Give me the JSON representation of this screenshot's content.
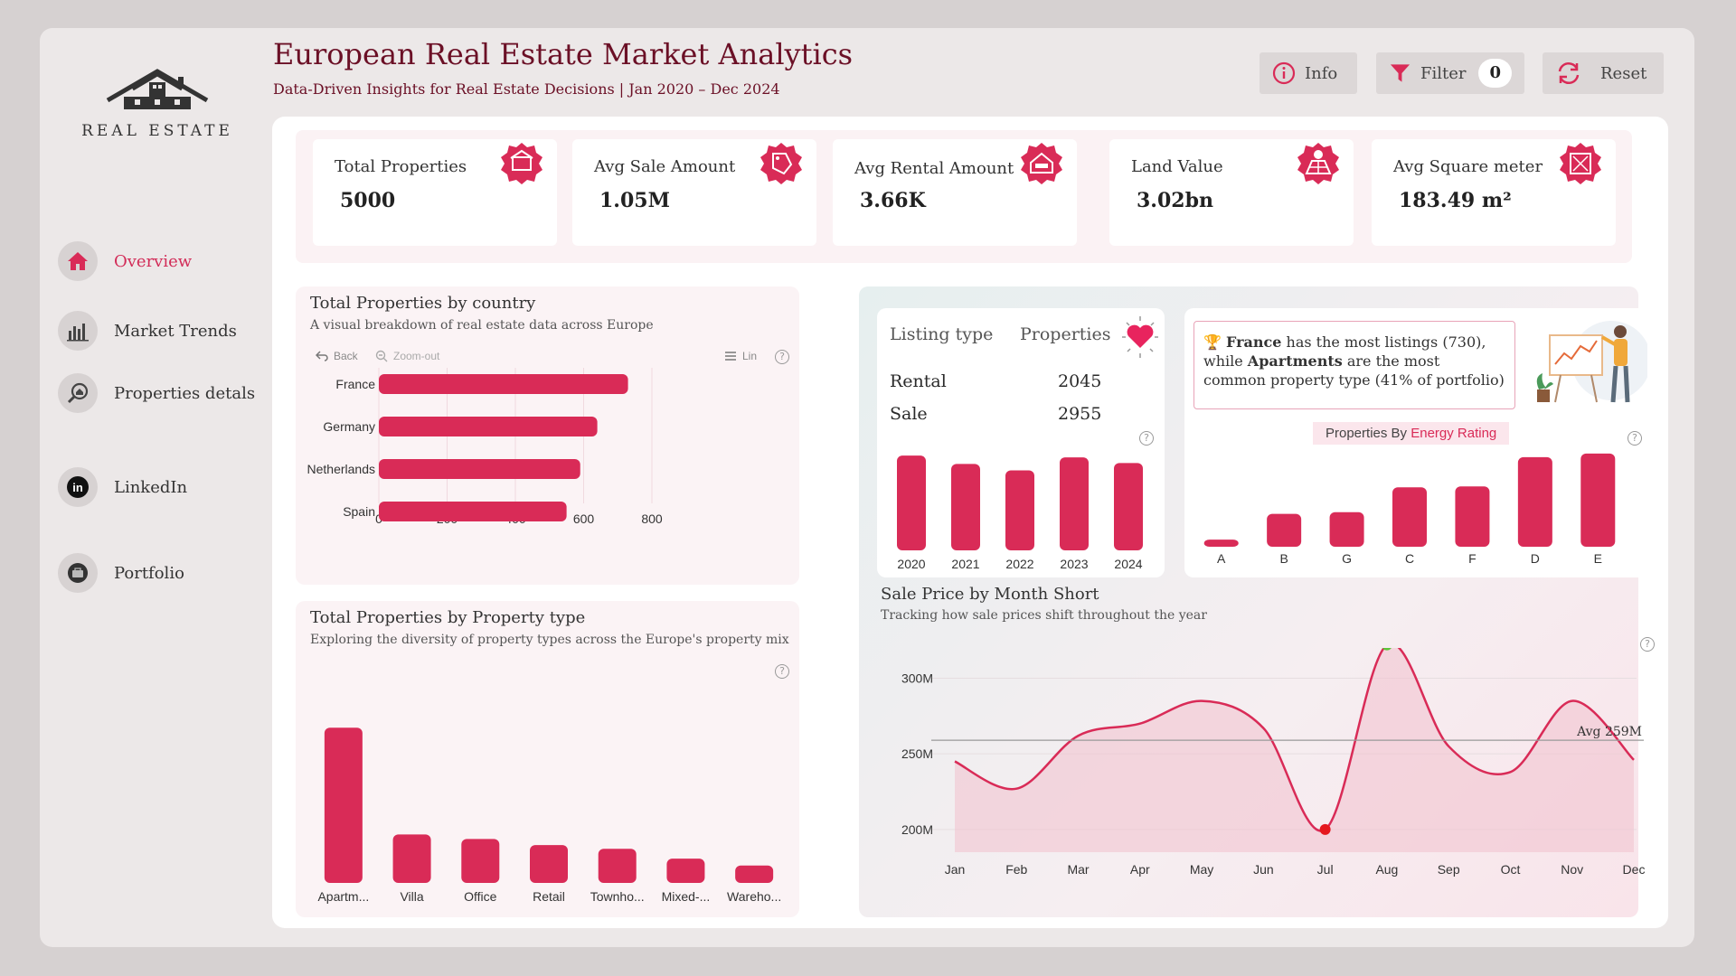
{
  "logo": {
    "text": "REAL ESTATE"
  },
  "header": {
    "title": "European Real Estate Market Analytics",
    "subtitle": "Data-Driven Insights for Real Estate Decisions | Jan 2020 – Dec 2024",
    "info_label": "Info",
    "filter_label": "Filter",
    "filter_count": "0",
    "reset_label": "Reset"
  },
  "nav": [
    {
      "label": "Overview"
    },
    {
      "label": "Market Trends"
    },
    {
      "label": "Properties detals"
    },
    {
      "label": "LinkedIn"
    },
    {
      "label": "Portfolio"
    }
  ],
  "kpis": [
    {
      "label": "Total Properties",
      "value": "5000"
    },
    {
      "label": "Avg Sale Amount",
      "value": "1.05M"
    },
    {
      "label": "Avg Rental Amount",
      "value": "3.66K"
    },
    {
      "label": "Land Value",
      "value": "3.02bn"
    },
    {
      "label": "Avg Square meter",
      "value": "183.49 m²"
    }
  ],
  "country_panel": {
    "title": "Total Properties by country",
    "subtitle": "A visual breakdown of real estate data across Europe",
    "back_label": "Back",
    "zoom_label": "Zoom-out",
    "scale_label": "Lin"
  },
  "type_panel": {
    "title": "Total Properties by Property type",
    "subtitle": "Exploring the diversity of property types across the Europe's property mix"
  },
  "listing": {
    "col1": "Listing type",
    "col2": "Properties",
    "rows": [
      {
        "type": "Rental",
        "count": "2045"
      },
      {
        "type": "Sale",
        "count": "2955"
      }
    ]
  },
  "insight": {
    "trophy": "🏆",
    "country": "France",
    "part1": " has the most listings (730), while ",
    "ptype": "Apartments",
    "part2": " are the most common property type (41% of portfolio)"
  },
  "energy_header": {
    "prefix": "Properties By ",
    "accent": "Energy Rating"
  },
  "sale_panel": {
    "title": "Sale Price by Month Short",
    "subtitle": "Tracking how sale prices shift throughout the year"
  },
  "colors": {
    "accent": "#d92b57",
    "title": "#6b1026",
    "avg_line": "#999999"
  },
  "chart_data": [
    {
      "type": "bar",
      "orientation": "horizontal",
      "title": "Total Properties by country",
      "categories": [
        "France",
        "Germany",
        "Netherlands",
        "Spain"
      ],
      "values": [
        730,
        640,
        590,
        550
      ],
      "xlim": [
        0,
        800
      ],
      "xticks": [
        "0",
        "200",
        "400",
        "600",
        "800"
      ]
    },
    {
      "type": "bar",
      "title": "Total Properties by Property type",
      "categories": [
        "Apartm...",
        "Villa",
        "Office",
        "Retail",
        "Townho...",
        "Mixed-...",
        "Wareho..."
      ],
      "values": [
        2050,
        640,
        580,
        500,
        450,
        320,
        230
      ],
      "ylim": [
        0,
        2100
      ]
    },
    {
      "type": "bar",
      "title": "Listings by Year",
      "categories": [
        "2020",
        "2021",
        "2022",
        "2023",
        "2024"
      ],
      "values": [
        1020,
        930,
        860,
        1000,
        940
      ],
      "ylim": [
        0,
        1050
      ]
    },
    {
      "type": "bar",
      "title": "Properties By Energy Rating",
      "categories": [
        "A",
        "B",
        "G",
        "C",
        "F",
        "D",
        "E"
      ],
      "values": [
        80,
        370,
        390,
        670,
        680,
        1010,
        1050
      ],
      "ylim": [
        0,
        1100
      ]
    },
    {
      "type": "area",
      "title": "Sale Price by Month Short",
      "categories": [
        "Jan",
        "Feb",
        "Mar",
        "Apr",
        "May",
        "Jun",
        "Jul",
        "Aug",
        "Sep",
        "Oct",
        "Nov",
        "Dec"
      ],
      "values": [
        245,
        227,
        262,
        270,
        285,
        267,
        200,
        322,
        255,
        238,
        285,
        246
      ],
      "ylim": [
        185,
        320
      ],
      "yticks": [
        "200M",
        "250M",
        "300M"
      ],
      "average": 259,
      "average_label": "Avg 259M",
      "max_index": 7,
      "min_index": 6
    }
  ]
}
